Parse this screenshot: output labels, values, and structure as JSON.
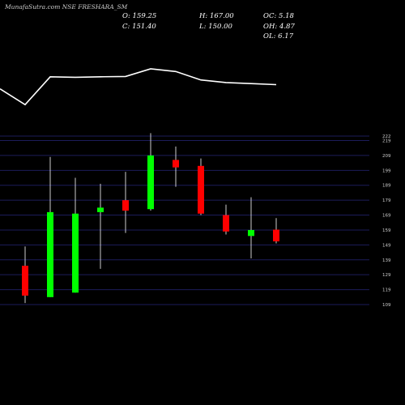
{
  "header": {
    "title": "MunafaSutra.com NSE FRESHARA_SM",
    "open": "O: 159.25",
    "high": "H: 167.00",
    "oc": "OC: 5.18",
    "close": "C: 151.40",
    "low": "L: 150.00",
    "oh": "OH: 4.87",
    "ol": "OL: 6.17"
  },
  "colors": {
    "background": "#000000",
    "up": "#00ff00",
    "down": "#ff0000",
    "wick": "#ffffff",
    "grid": "#1c1c5a",
    "line": "#ffffff"
  },
  "chart_data": {
    "type": "candlestick",
    "title": "MunafaSutra.com NSE FRESHARA_SM",
    "yticks": [
      222,
      219,
      209,
      199,
      189,
      179,
      169,
      159,
      149,
      139,
      129,
      119,
      109
    ],
    "ylim": [
      106,
      224
    ],
    "grid": true,
    "candles": [
      {
        "open": 135,
        "close": 115,
        "high": 148,
        "low": 110,
        "color": "down"
      },
      {
        "open": 114,
        "close": 171,
        "high": 208,
        "low": 114,
        "color": "up"
      },
      {
        "open": 117,
        "close": 170,
        "high": 194,
        "low": 117,
        "color": "up"
      },
      {
        "open": 171,
        "close": 174,
        "high": 190,
        "low": 133,
        "color": "up"
      },
      {
        "open": 179,
        "close": 172,
        "high": 198,
        "low": 157,
        "color": "down"
      },
      {
        "open": 173,
        "close": 209,
        "high": 224,
        "low": 172,
        "color": "up"
      },
      {
        "open": 206,
        "close": 201,
        "high": 215,
        "low": 188,
        "color": "down"
      },
      {
        "open": 202,
        "close": 170,
        "high": 207,
        "low": 169,
        "color": "down"
      },
      {
        "open": 169,
        "close": 158,
        "high": 176,
        "low": 156,
        "color": "down"
      },
      {
        "open": 155,
        "close": 159,
        "high": 181,
        "low": 140,
        "color": "up"
      },
      {
        "open": 159.25,
        "close": 151.4,
        "high": 167,
        "low": 150,
        "color": "down"
      }
    ],
    "overlay_line": [
      0.62,
      0.32,
      0.85,
      0.84,
      0.85,
      0.855,
      1.0,
      0.95,
      0.79,
      0.74,
      0.72,
      0.7
    ]
  }
}
